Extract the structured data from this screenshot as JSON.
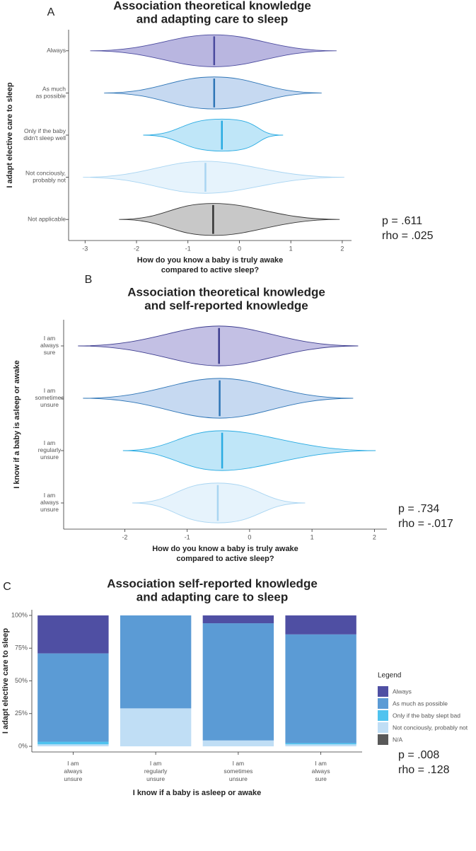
{
  "chart_data": [
    {
      "type": "violin",
      "label": "A",
      "title": "Association theoretical knowledge\nand adapting care to sleep",
      "xlabel": "How do you know a baby is truly awake\ncompared to active sleep?",
      "ylabel": "I adapt elective care to sleep",
      "categories": [
        "Always",
        "As much\nas possible",
        "Only if the baby\ndidn't sleep well",
        "Not conciously,\nprobably not",
        "Not applicable"
      ],
      "colors": [
        "#4a4a9e",
        "#2e75b6",
        "#29abe2",
        "#a9d5f2",
        "#333333"
      ],
      "fills": [
        "#b9b6e0",
        "#c6d9f1",
        "#bfe6f8",
        "#e6f3fc",
        "#c8c8c8"
      ],
      "medians": [
        -0.49,
        -0.49,
        -0.34,
        -0.66,
        -0.51
      ],
      "mins": [
        -2.9,
        -2.63,
        -1.87,
        -3.04,
        -2.34
      ],
      "maxs": [
        1.89,
        1.6,
        0.85,
        2.04,
        1.95
      ],
      "xlim": [
        -3.32,
        2.18
      ],
      "xticks": [
        -3,
        -2,
        -1,
        0,
        1,
        2
      ],
      "annotations": [
        "p = .611",
        "rho = .025"
      ]
    },
    {
      "type": "violin",
      "label": "B",
      "title": "Association theoretical knowledge\nand self-reported knowledge",
      "xlabel": "How do you know a baby is truly awake\ncompared to active sleep?",
      "ylabel": "I know if a baby is asleep or awake",
      "categories": [
        "I am\nalways\nsure",
        "I am\nsometimes\nunsure",
        "I am\nregularly\nunsure",
        "I am\nalways\nunsure"
      ],
      "colors": [
        "#3d3d8f",
        "#2e75b6",
        "#29abe2",
        "#a9d5f2"
      ],
      "fills": [
        "#c3c0e4",
        "#c6d9f1",
        "#bfe6f8",
        "#e6f3fc"
      ],
      "medians": [
        -0.49,
        -0.48,
        -0.44,
        -0.51
      ],
      "mins": [
        -2.75,
        -2.67,
        -2.03,
        -1.88
      ],
      "maxs": [
        1.74,
        1.66,
        2.02,
        0.89
      ],
      "xlim": [
        -2.98,
        2.2
      ],
      "xticks": [
        -2,
        -1,
        0,
        1,
        2
      ],
      "annotations": [
        "p = .734",
        "rho = -.017"
      ]
    },
    {
      "type": "stacked_bar",
      "label": "C",
      "title": "Association self-reported knowledge\nand adapting care to sleep",
      "xlabel": "I know if a baby is asleep or awake",
      "ylabel": "I adapt elective care to sleep",
      "categories": [
        "I am\nalways\nunsure",
        "I am\nregularly\nunsure",
        "I am\nsometimes\nunsure",
        "I am\nalways\nsure"
      ],
      "series": [
        {
          "name": "N/A",
          "color": "#595959",
          "values": [
            0,
            0,
            0,
            0
          ]
        },
        {
          "name": "Not conciously, probably not",
          "color": "#c0def5",
          "values": [
            1.5,
            29,
            4.5,
            1.5
          ]
        },
        {
          "name": "Only if the baby slept bad",
          "color": "#4fc3ef",
          "values": [
            2,
            0,
            0,
            1
          ]
        },
        {
          "name": "As much as possible",
          "color": "#5b9bd5",
          "values": [
            67.5,
            71,
            89.5,
            83
          ]
        },
        {
          "name": "Always",
          "color": "#4f4fa3",
          "values": [
            29,
            0,
            6,
            14.5
          ]
        }
      ],
      "legend_title": "Legend",
      "ylim": [
        -4.3,
        104.3
      ],
      "yticks": [
        {
          "value": 0,
          "label": "0%"
        },
        {
          "value": 25,
          "label": "25%"
        },
        {
          "value": 50,
          "label": "50%"
        },
        {
          "value": 75,
          "label": "75%"
        },
        {
          "value": 100,
          "label": "100%"
        }
      ],
      "annotations": [
        "p = .008",
        "rho = .128"
      ]
    }
  ]
}
